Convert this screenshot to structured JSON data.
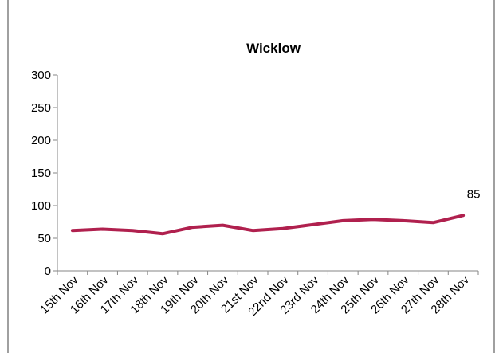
{
  "chart_data": {
    "type": "line",
    "title": "Wicklow",
    "xlabel": "",
    "ylabel": "",
    "categories": [
      "15th Nov",
      "16th Nov",
      "17th Nov",
      "18th Nov",
      "19th Nov",
      "20th Nov",
      "21st Nov",
      "22nd Nov",
      "23rd Nov",
      "24th Nov",
      "25th Nov",
      "26th Nov",
      "27th Nov",
      "28th Nov"
    ],
    "series": [
      {
        "values": [
          62,
          64,
          62,
          57,
          67,
          70,
          62,
          65,
          71,
          77,
          79,
          77,
          74,
          85
        ],
        "color": "#B0204E"
      }
    ],
    "yticks": [
      0,
      50,
      100,
      150,
      200,
      250,
      300
    ],
    "ylim": [
      0,
      300
    ],
    "grid": false,
    "legend": "none",
    "data_labels": [
      {
        "index": 13,
        "text": "85"
      }
    ]
  }
}
